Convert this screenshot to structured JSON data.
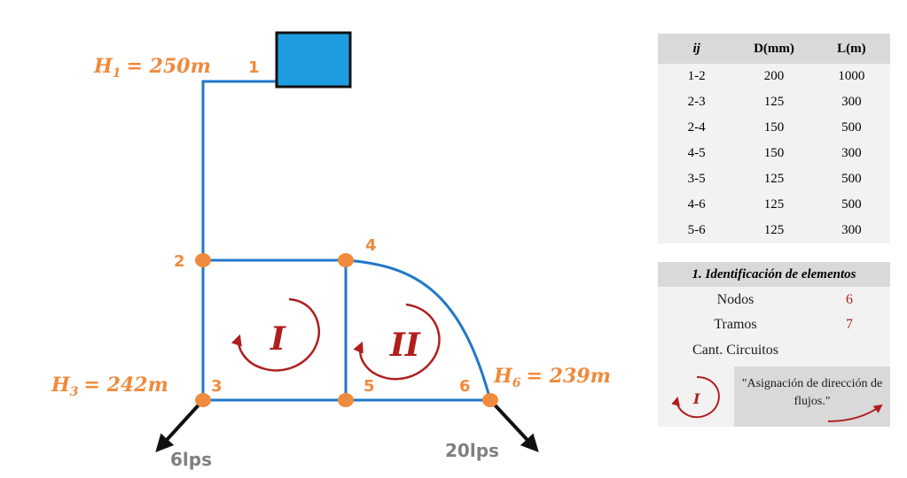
{
  "nodes": {
    "n1": "1",
    "n2": "2",
    "n3": "3",
    "n4": "4",
    "n5": "5",
    "n6": "6"
  },
  "heads": {
    "h1": {
      "sym": "H",
      "sub": "1",
      "val": "= 250m"
    },
    "h3": {
      "sym": "H",
      "sub": "3",
      "val": "= 242m"
    },
    "h6": {
      "sym": "H",
      "sub": "6",
      "val": "= 239m"
    }
  },
  "demands": {
    "d3": "6lps",
    "d6": "20lps"
  },
  "loops": {
    "l1": "I",
    "l2": "II"
  },
  "colors": {
    "pipe": "#1f78c8",
    "node": "#f08a3c",
    "loop": "#b01e1e",
    "tank": "#1e9de0"
  },
  "table": {
    "headers": [
      "ij",
      "D(mm)",
      "L(m)"
    ],
    "rows": [
      [
        "1-2",
        "200",
        "1000"
      ],
      [
        "2-3",
        "125",
        "300"
      ],
      [
        "2-4",
        "150",
        "500"
      ],
      [
        "4-5",
        "150",
        "300"
      ],
      [
        "3-5",
        "125",
        "500"
      ],
      [
        "4-6",
        "125",
        "500"
      ],
      [
        "5-6",
        "125",
        "300"
      ]
    ]
  },
  "identification": {
    "title": "1. Identificación de elementos",
    "rows": [
      {
        "label": "Nodos",
        "value": "6"
      },
      {
        "label": "Tramos",
        "value": "7"
      },
      {
        "label": "Cant. Circuitos",
        "value": ""
      }
    ],
    "legend_loop": "I",
    "note_line1": "\"Asignación de dirección de",
    "note_line2": "flujos.\""
  }
}
